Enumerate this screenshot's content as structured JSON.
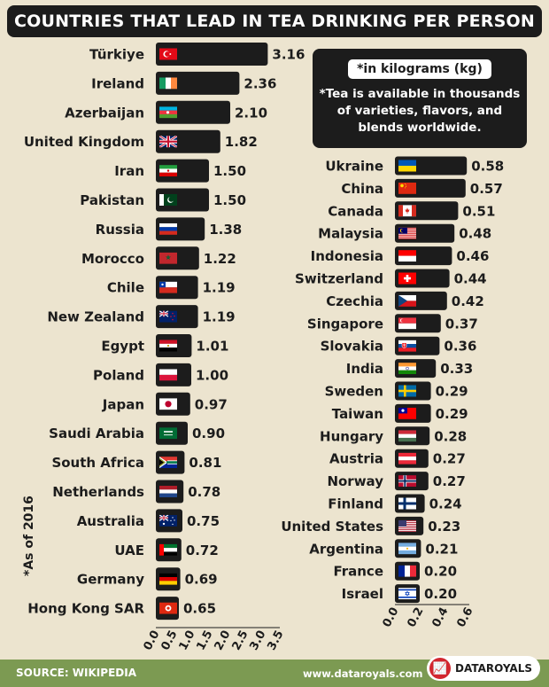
{
  "title": "COUNTRIES THAT LEAD IN TEA DRINKING PER PERSON",
  "note": {
    "unit": "*in kilograms (kg)",
    "text": "*Tea is available in thousands of varieties, flavors, and blends worldwide."
  },
  "side_note": "*As of 2016",
  "footer": {
    "source": "SOURCE: WIKIPEDIA",
    "url": "www.dataroyals.com",
    "brand": "DATAROYALS"
  },
  "colors": {
    "background": "#ece4cf",
    "bar": "#1c1c1c",
    "footer": "#7c9a52",
    "brand_red": "#d2262f"
  },
  "chart_data": [
    {
      "type": "bar",
      "orientation": "horizontal",
      "categories": [
        "Türkiye",
        "Ireland",
        "Azerbaijan",
        "United Kingdom",
        "Iran",
        "Pakistan",
        "Russia",
        "Morocco",
        "Chile",
        "New Zealand",
        "Egypt",
        "Poland",
        "Japan",
        "Saudi Arabia",
        "South Africa",
        "Netherlands",
        "Australia",
        "UAE",
        "Germany",
        "Hong Kong SAR"
      ],
      "values": [
        3.16,
        2.36,
        2.1,
        1.82,
        1.5,
        1.5,
        1.38,
        1.22,
        1.19,
        1.19,
        1.01,
        1.0,
        0.97,
        0.9,
        0.81,
        0.78,
        0.75,
        0.72,
        0.69,
        0.65
      ],
      "value_labels": [
        "3.16",
        "2.36",
        "2.10",
        "1.82",
        "1.50",
        "1.50",
        "1.38",
        "1.22",
        "1.19",
        "1.19",
        "1.01",
        "1.00",
        "0.97",
        "0.90",
        "0.81",
        "0.78",
        "0.75",
        "0.72",
        "0.69",
        "0.65"
      ],
      "flags": [
        "turkey-flag",
        "ireland-flag",
        "azerbaijan-flag",
        "uk-flag",
        "iran-flag",
        "pakistan-flag",
        "russia-flag",
        "morocco-flag",
        "chile-flag",
        "new-zealand-flag",
        "egypt-flag",
        "poland-flag",
        "japan-flag",
        "saudi-arabia-flag",
        "south-africa-flag",
        "netherlands-flag",
        "australia-flag",
        "uae-flag",
        "germany-flag",
        "hong-kong-flag"
      ],
      "xticks": [
        "0.0",
        "0.5",
        "1.0",
        "1.5",
        "2.0",
        "2.5",
        "3.0",
        "3.5"
      ],
      "xlim": [
        0,
        3.5
      ],
      "grid": false,
      "legend": "none"
    },
    {
      "type": "bar",
      "orientation": "horizontal",
      "categories": [
        "Ukraine",
        "China",
        "Canada",
        "Malaysia",
        "Indonesia",
        "Switzerland",
        "Czechia",
        "Singapore",
        "Slovakia",
        "India",
        "Sweden",
        "Taiwan",
        "Hungary",
        "Austria",
        "Norway",
        "Finland",
        "United States",
        "Argentina",
        "France",
        "Israel"
      ],
      "values": [
        0.58,
        0.57,
        0.51,
        0.48,
        0.46,
        0.44,
        0.42,
        0.37,
        0.36,
        0.33,
        0.29,
        0.29,
        0.28,
        0.27,
        0.27,
        0.24,
        0.23,
        0.21,
        0.2,
        0.2
      ],
      "value_labels": [
        "0.58",
        "0.57",
        "0.51",
        "0.48",
        "0.46",
        "0.44",
        "0.42",
        "0.37",
        "0.36",
        "0.33",
        "0.29",
        "0.29",
        "0.28",
        "0.27",
        "0.27",
        "0.24",
        "0.23",
        "0.21",
        "0.20",
        "0.20"
      ],
      "flags": [
        "ukraine-flag",
        "china-flag",
        "canada-flag",
        "malaysia-flag",
        "indonesia-flag",
        "switzerland-flag",
        "czechia-flag",
        "singapore-flag",
        "slovakia-flag",
        "india-flag",
        "sweden-flag",
        "taiwan-flag",
        "hungary-flag",
        "austria-flag",
        "norway-flag",
        "finland-flag",
        "us-flag",
        "argentina-flag",
        "france-flag",
        "israel-flag"
      ],
      "xticks": [
        "0.0",
        "0.2",
        "0.4",
        "0.6"
      ],
      "xlim": [
        0,
        0.6
      ],
      "grid": false,
      "legend": "none"
    }
  ]
}
